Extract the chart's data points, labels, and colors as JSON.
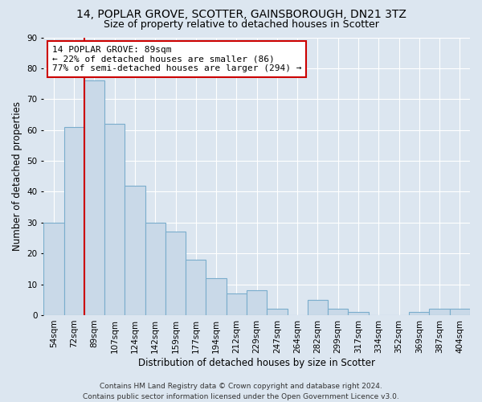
{
  "title": "14, POPLAR GROVE, SCOTTER, GAINSBOROUGH, DN21 3TZ",
  "subtitle": "Size of property relative to detached houses in Scotter",
  "xlabel": "Distribution of detached houses by size in Scotter",
  "ylabel": "Number of detached properties",
  "bar_labels": [
    "54sqm",
    "72sqm",
    "89sqm",
    "107sqm",
    "124sqm",
    "142sqm",
    "159sqm",
    "177sqm",
    "194sqm",
    "212sqm",
    "229sqm",
    "247sqm",
    "264sqm",
    "282sqm",
    "299sqm",
    "317sqm",
    "334sqm",
    "352sqm",
    "369sqm",
    "387sqm",
    "404sqm"
  ],
  "bar_values": [
    30,
    61,
    76,
    62,
    42,
    30,
    27,
    18,
    12,
    7,
    8,
    2,
    0,
    5,
    2,
    1,
    0,
    0,
    1,
    2,
    2
  ],
  "bar_color": "#c9d9e8",
  "bar_edge_color": "#7aadcc",
  "vline_position": 2,
  "vline_color": "#cc0000",
  "ylim": [
    0,
    90
  ],
  "yticks": [
    0,
    10,
    20,
    30,
    40,
    50,
    60,
    70,
    80,
    90
  ],
  "annotation_title": "14 POPLAR GROVE: 89sqm",
  "annotation_line1": "← 22% of detached houses are smaller (86)",
  "annotation_line2": "77% of semi-detached houses are larger (294) →",
  "annotation_box_facecolor": "#ffffff",
  "annotation_box_edgecolor": "#cc0000",
  "background_color": "#dce6f0",
  "plot_bg_color": "#dce6f0",
  "grid_color": "#ffffff",
  "footer_line1": "Contains HM Land Registry data © Crown copyright and database right 2024.",
  "footer_line2": "Contains public sector information licensed under the Open Government Licence v3.0.",
  "title_fontsize": 10,
  "subtitle_fontsize": 9,
  "xlabel_fontsize": 8.5,
  "ylabel_fontsize": 8.5,
  "tick_fontsize": 7.5,
  "annotation_fontsize": 8,
  "footer_fontsize": 6.5
}
